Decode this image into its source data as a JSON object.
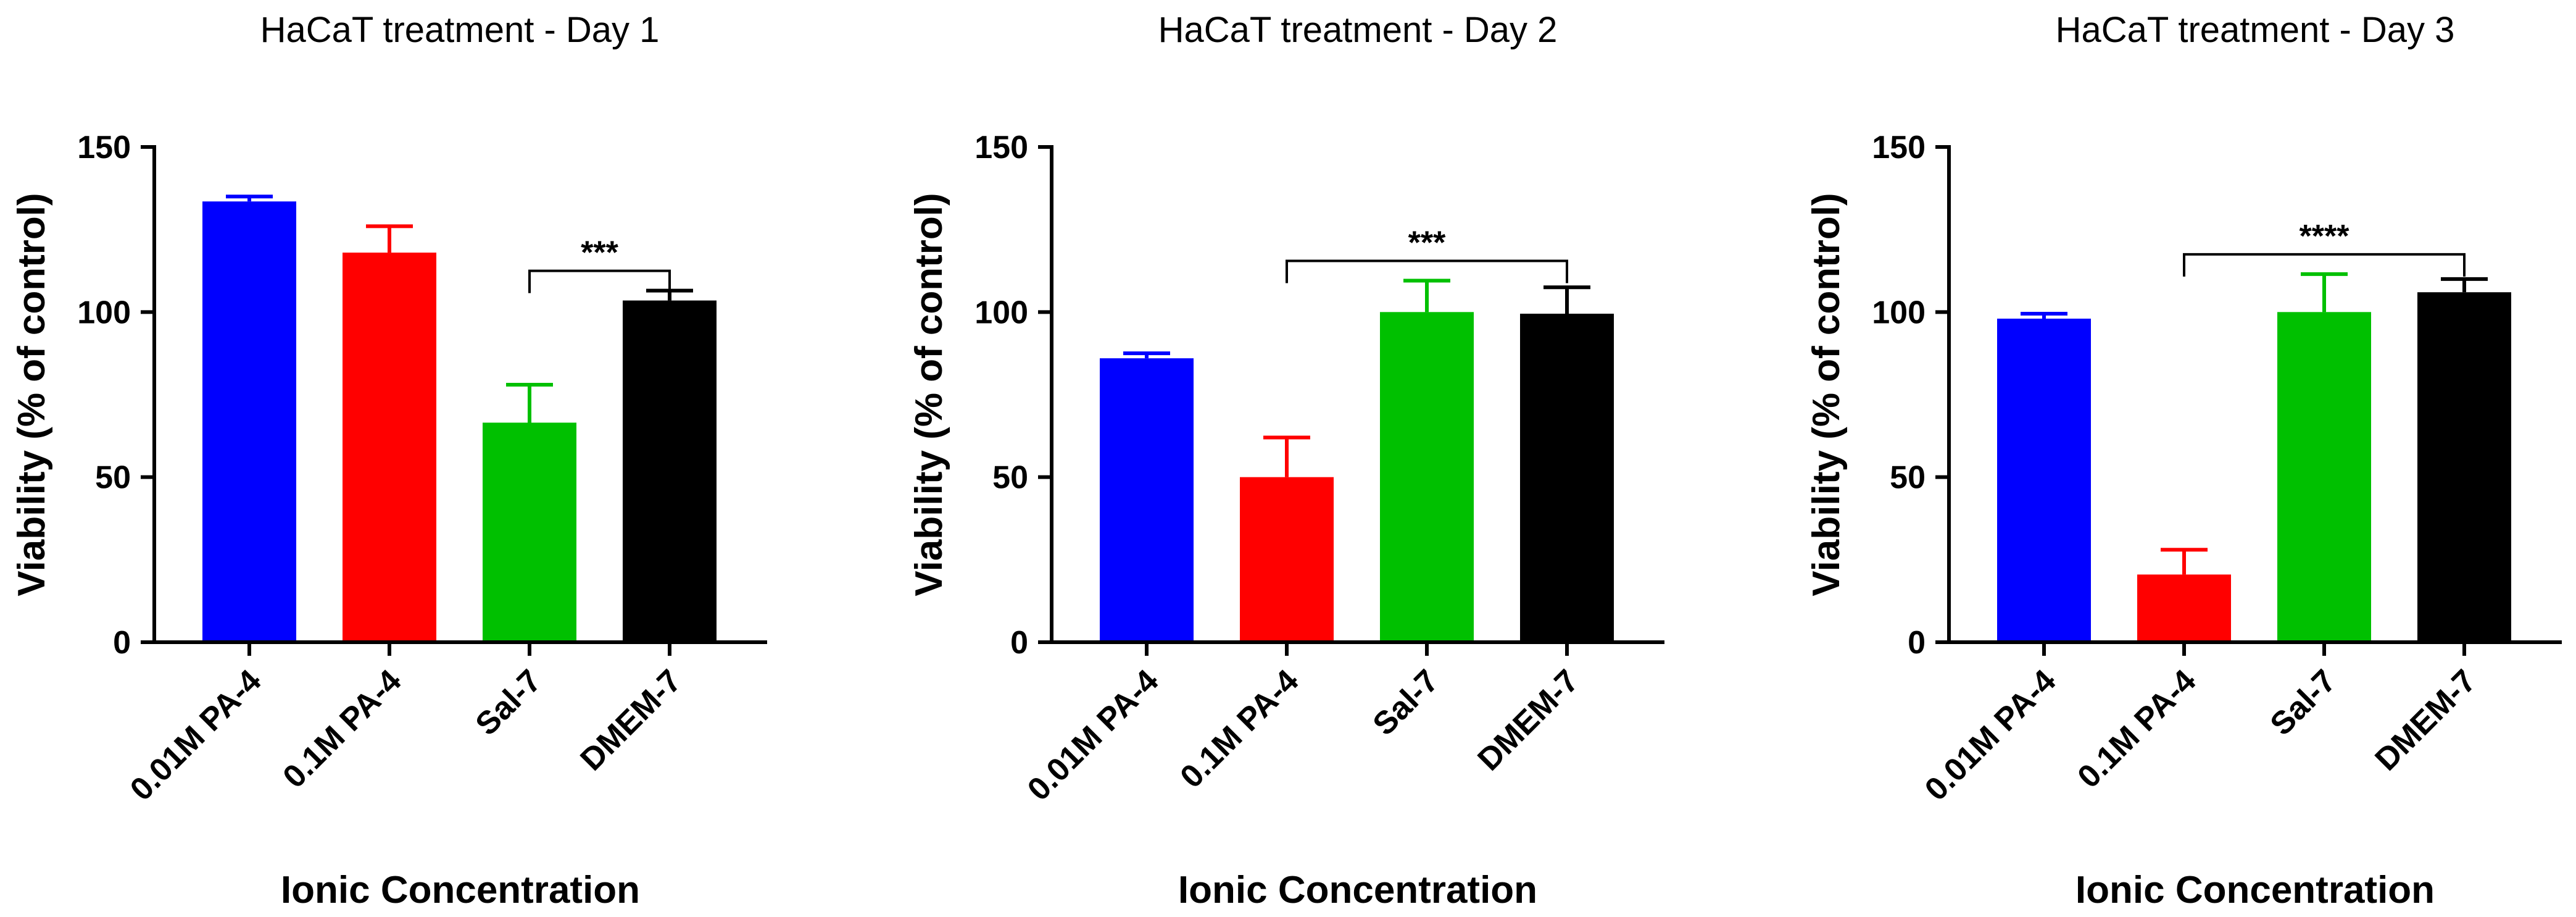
{
  "chart_data": [
    {
      "type": "bar",
      "title": "HaCaT treatment - Day 1",
      "xlabel": "Ionic Concentration",
      "ylabel": "Viability (% of control)",
      "ylim": [
        0,
        150
      ],
      "yticks": [
        0,
        50,
        100,
        150
      ],
      "categories": [
        "0.01M PA-4",
        "0.1M PA-4",
        "Sal-7",
        "DMEM-7"
      ],
      "values": [
        133.5,
        118,
        66.5,
        103.5
      ],
      "errors": [
        1.5,
        8,
        11.5,
        3
      ],
      "colors": [
        "#0000FF",
        "#FF0000",
        "#00C000",
        "#000000"
      ],
      "significance": [
        {
          "from": 2,
          "to": 3,
          "label": "***"
        }
      ]
    },
    {
      "type": "bar",
      "title": "HaCaT treatment - Day 2",
      "xlabel": "Ionic Concentration",
      "ylabel": "Viability (% of control)",
      "ylim": [
        0,
        150
      ],
      "yticks": [
        0,
        50,
        100,
        150
      ],
      "categories": [
        "0.01M PA-4",
        "0.1M PA-4",
        "Sal-7",
        "DMEM-7"
      ],
      "values": [
        86,
        50,
        100,
        99.5
      ],
      "errors": [
        1.5,
        12,
        9.5,
        8
      ],
      "colors": [
        "#0000FF",
        "#FF0000",
        "#00C000",
        "#000000"
      ],
      "significance": [
        {
          "from": 1,
          "to": 3,
          "label": "***"
        }
      ]
    },
    {
      "type": "bar",
      "title": "HaCaT treatment - Day 3",
      "xlabel": "Ionic Concentration",
      "ylabel": "Viability (% of control)",
      "ylim": [
        0,
        150
      ],
      "yticks": [
        0,
        50,
        100,
        150
      ],
      "categories": [
        "0.01M PA-4",
        "0.1M PA-4",
        "Sal-7",
        "DMEM-7"
      ],
      "values": [
        98,
        20.5,
        100,
        106
      ],
      "errors": [
        1.5,
        7.5,
        11.5,
        4
      ],
      "colors": [
        "#0000FF",
        "#FF0000",
        "#00C000",
        "#000000"
      ],
      "significance": [
        {
          "from": 1,
          "to": 3,
          "label": "****"
        }
      ]
    }
  ]
}
